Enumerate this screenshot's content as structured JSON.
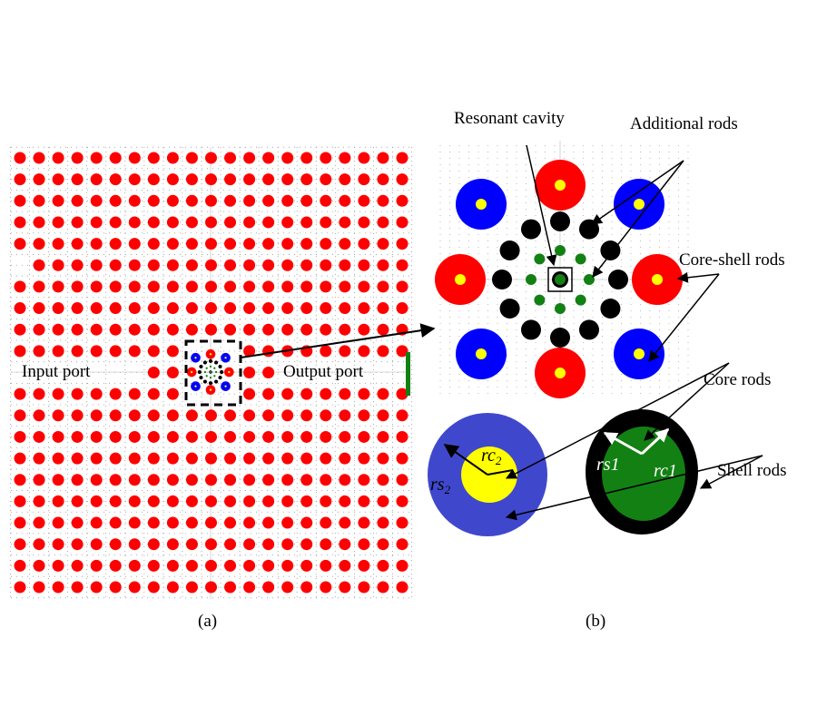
{
  "panel_a": {
    "caption": "(a)",
    "input_label": "Input port",
    "output_label": "Output port",
    "lattice": {
      "rows": 21,
      "columns": 21,
      "rod_color": "#ff0000"
    }
  },
  "panel_b": {
    "caption": "(b)",
    "labels": {
      "resonant_cavity": "Resonant cavity",
      "additional_rods": "Additional rods",
      "core_shell_rods": "Core-shell rods",
      "core_rods": "Core rods",
      "shell_rods": "Shell rods"
    },
    "radius_labels": {
      "rs2": "rs",
      "rs2_sub": "2",
      "rc2": "rc",
      "rc2_sub": "2",
      "rs1": "rs1",
      "rc1": "rc1"
    }
  },
  "colors": {
    "red_rod": "#ff0000",
    "blue_shell": "#0000ff",
    "blue_shell_detail": "#3f48cc",
    "yellow_core": "#ffff00",
    "black_rod": "#000000",
    "green_rod": "#138013"
  }
}
